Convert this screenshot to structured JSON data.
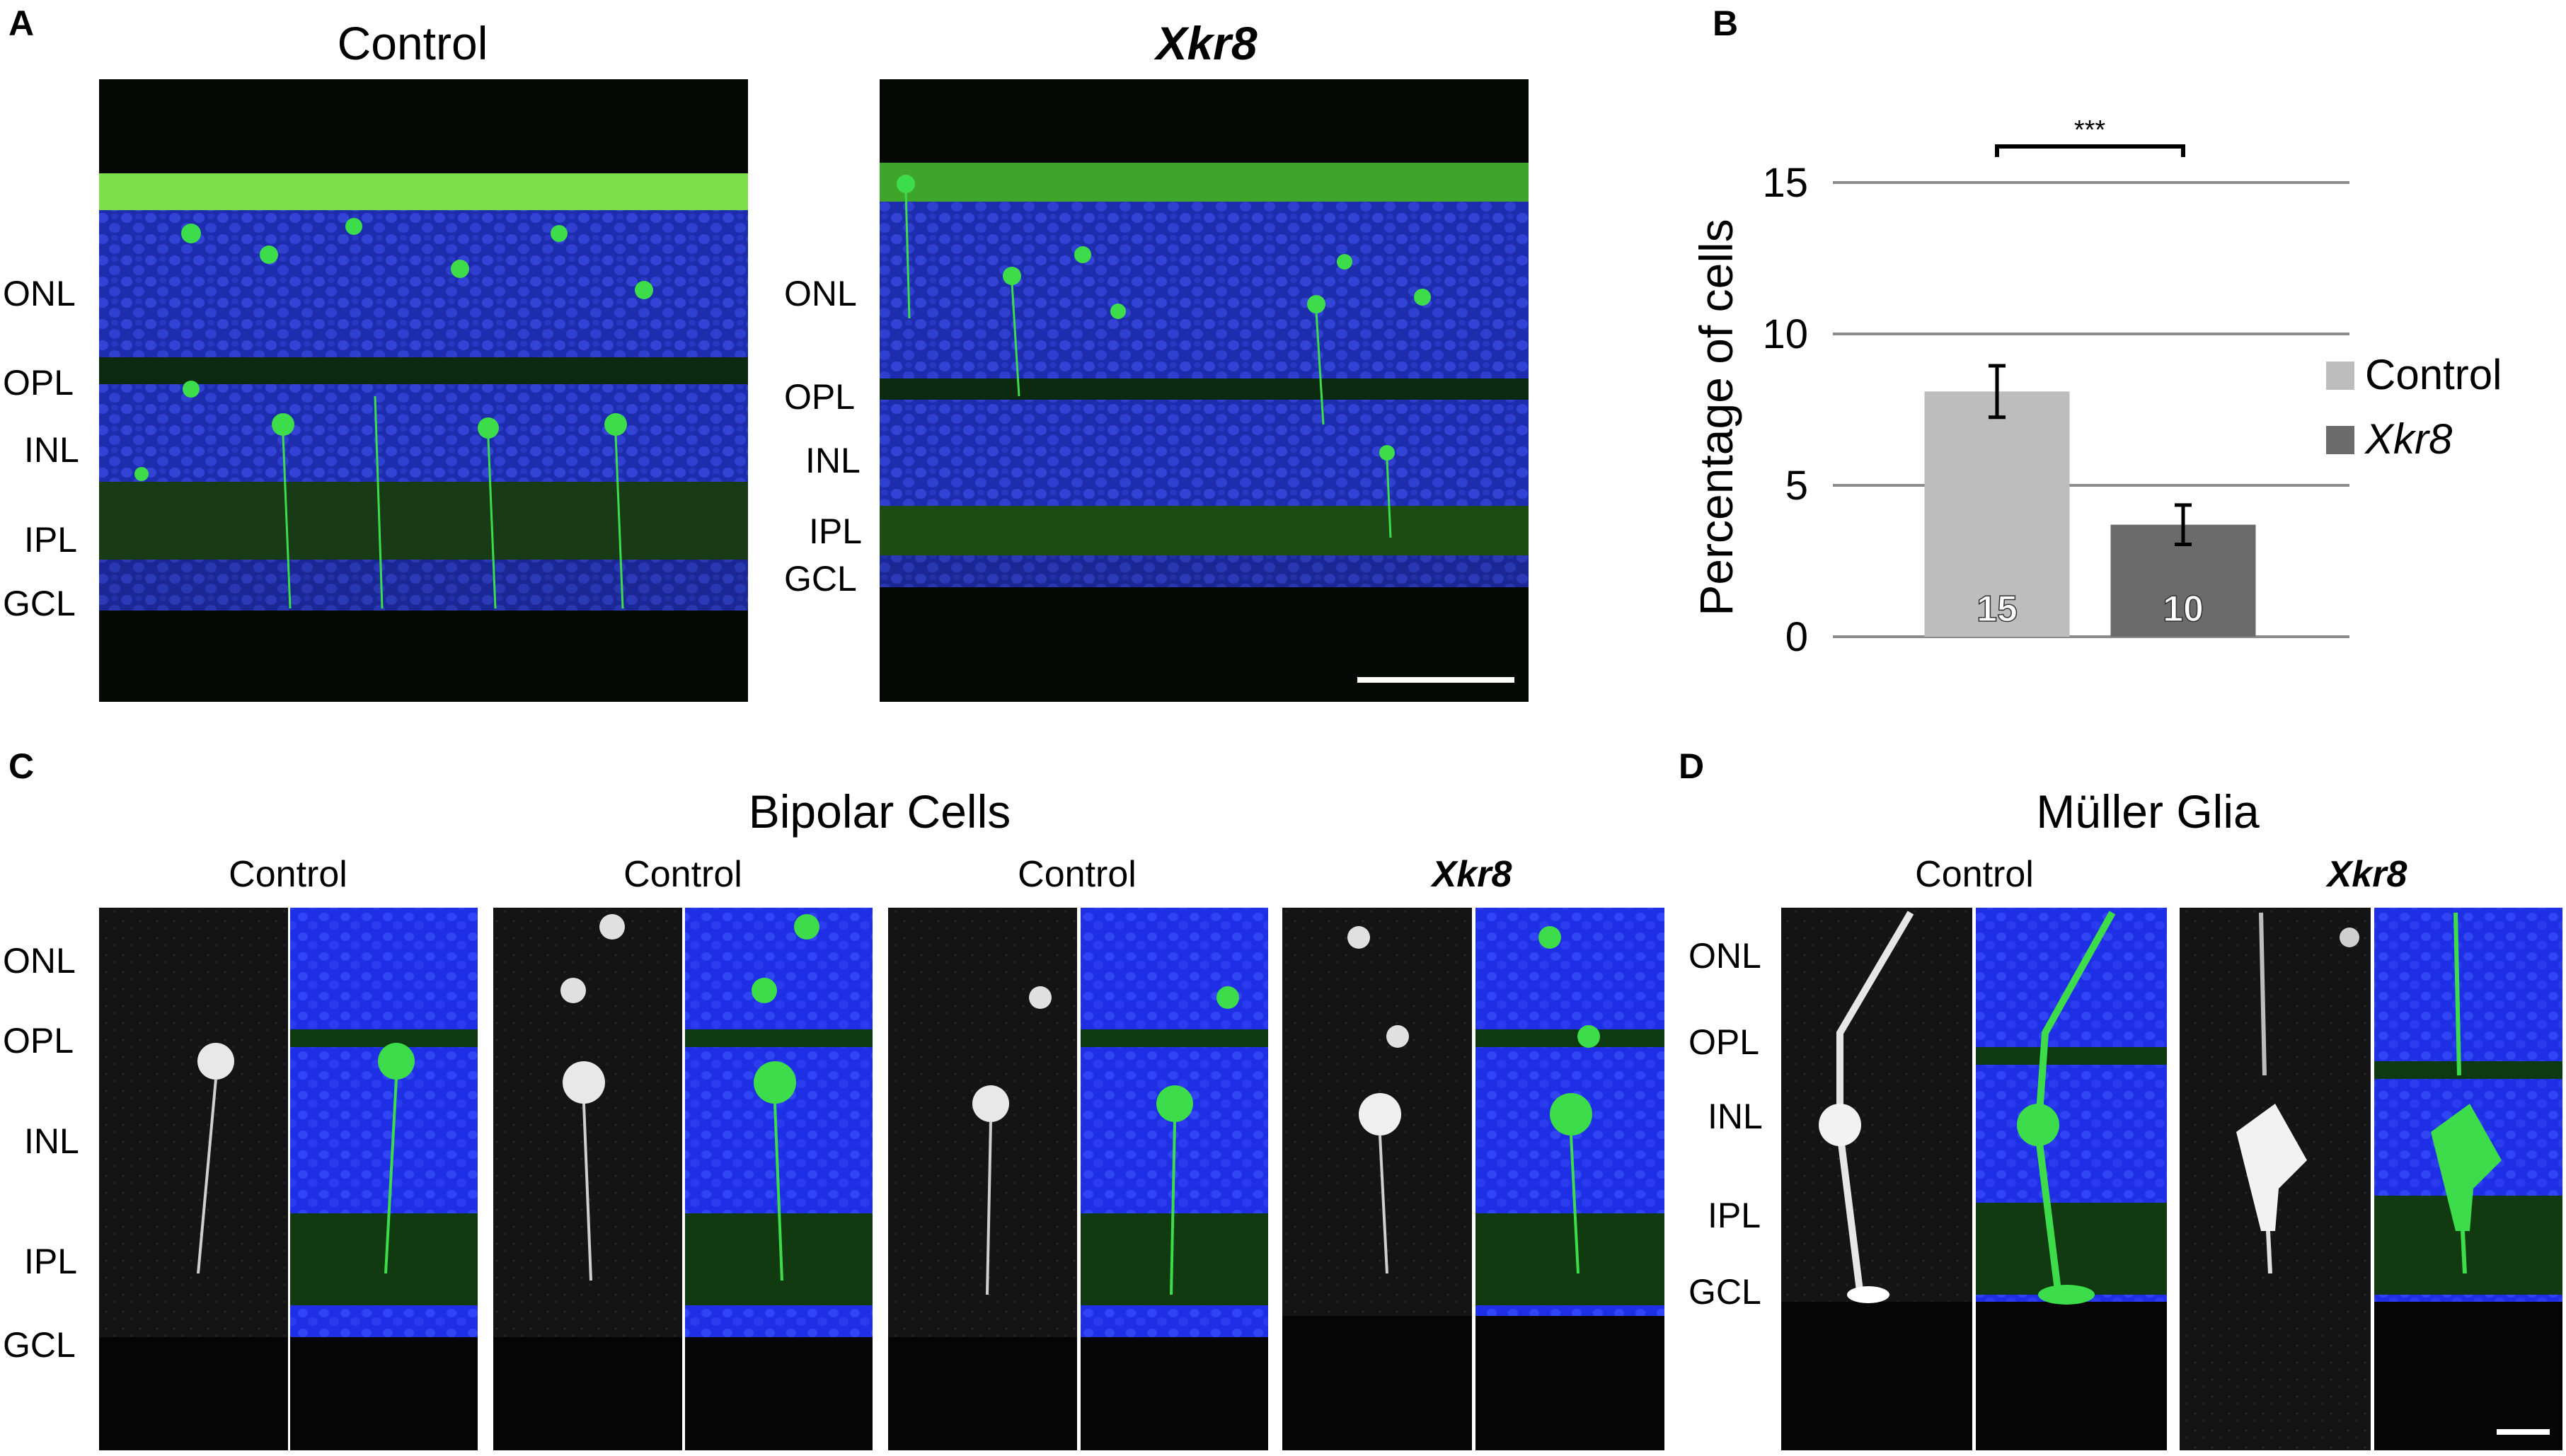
{
  "panel_letters": {
    "a": "A",
    "b": "B",
    "c": "C",
    "d": "D"
  },
  "panel_a": {
    "left_title": "Control",
    "right_title": "Xkr8",
    "left_layers": [
      "ONL",
      "OPL",
      "INL",
      "IPL",
      "GCL"
    ],
    "right_layers": [
      "ONL",
      "OPL",
      "INL",
      "IPL",
      "GCL"
    ]
  },
  "panel_c": {
    "title": "Bipolar Cells",
    "column_titles": [
      "Control",
      "Control",
      "Control",
      "Xkr8"
    ],
    "layers": [
      "ONL",
      "OPL",
      "INL",
      "IPL",
      "GCL"
    ]
  },
  "panel_d": {
    "title": "Müller Glia",
    "column_titles": [
      "Control",
      "Xkr8"
    ],
    "layers": [
      "ONL",
      "OPL",
      "INL",
      "IPL",
      "GCL"
    ]
  },
  "colors": {
    "nuclei_blue": "#2233c8",
    "gfp_green": "#3ddc4a",
    "control_bar": "#bdbdbd",
    "xkr8_bar": "#6b6b6b",
    "gridline": "#8c8c8c"
  },
  "chart_data": {
    "type": "bar",
    "categories": [
      "Control",
      "Xkr8"
    ],
    "values": [
      8.1,
      3.7
    ],
    "error": [
      0.85,
      0.65
    ],
    "bar_labels": [
      "15",
      "10"
    ],
    "title": "",
    "xlabel": "",
    "ylabel": "Percentage of cells",
    "ylim": [
      0,
      15
    ],
    "yticks": [
      0,
      5,
      10,
      15
    ],
    "grid": true,
    "legend": {
      "placement": "right",
      "entries": [
        "Control",
        "Xkr8"
      ]
    },
    "significance": "***"
  }
}
